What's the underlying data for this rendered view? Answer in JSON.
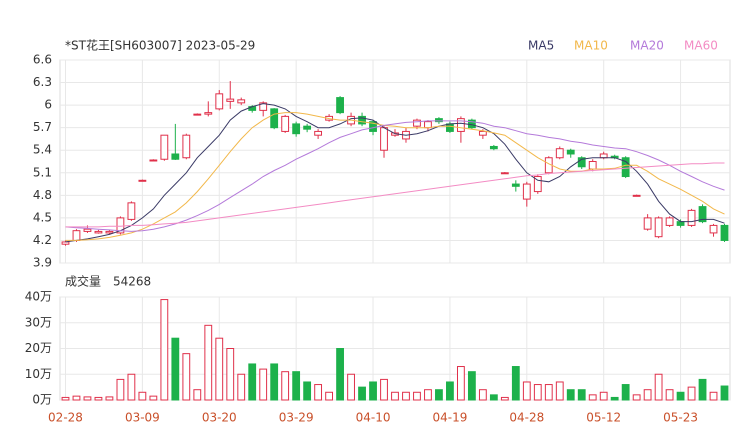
{
  "chart_data": {
    "type": "candlestick",
    "title": "*ST花王[SH603007] 2023-05-29",
    "categories": [
      "02-28",
      null,
      null,
      null,
      null,
      null,
      null,
      "03-09",
      null,
      null,
      null,
      null,
      null,
      null,
      "03-20",
      null,
      null,
      null,
      null,
      null,
      null,
      "03-29",
      null,
      null,
      null,
      null,
      null,
      null,
      "04-10",
      null,
      null,
      null,
      null,
      null,
      null,
      "04-19",
      null,
      null,
      null,
      null,
      null,
      null,
      "04-28",
      null,
      null,
      null,
      null,
      null,
      null,
      "05-12",
      null,
      null,
      null,
      null,
      null,
      null,
      "05-23",
      null,
      null,
      null,
      null
    ],
    "open": [
      4.15,
      4.2,
      4.32,
      4.3,
      4.3,
      4.3,
      4.48,
      5.0,
      5.27,
      5.28,
      5.35,
      5.3,
      5.88,
      5.88,
      5.95,
      6.05,
      6.03,
      5.98,
      5.93,
      5.95,
      5.65,
      5.75,
      5.72,
      5.6,
      5.8,
      6.1,
      5.75,
      5.85,
      5.78,
      5.4,
      5.6,
      5.55,
      5.72,
      5.7,
      5.82,
      5.75,
      5.65,
      5.8,
      5.6,
      5.45,
      5.1,
      4.95,
      4.75,
      4.85,
      5.1,
      5.3,
      5.4,
      5.3,
      5.15,
      5.3,
      5.32,
      5.3,
      4.8,
      4.35,
      4.25,
      4.4,
      4.45,
      4.4,
      4.65,
      4.3,
      4.4
    ],
    "close": [
      4.18,
      4.33,
      4.35,
      4.32,
      4.32,
      4.5,
      4.7,
      5.0,
      5.27,
      5.6,
      5.28,
      5.6,
      5.88,
      5.9,
      6.15,
      6.08,
      6.07,
      5.93,
      6.03,
      5.7,
      5.85,
      5.62,
      5.68,
      5.65,
      5.85,
      5.9,
      5.85,
      5.75,
      5.65,
      5.7,
      5.63,
      5.65,
      5.8,
      5.78,
      5.78,
      5.65,
      5.82,
      5.7,
      5.65,
      5.42,
      5.1,
      4.92,
      4.95,
      5.05,
      5.3,
      5.42,
      5.35,
      5.18,
      5.25,
      5.35,
      5.3,
      5.05,
      4.8,
      4.5,
      4.5,
      4.5,
      4.4,
      4.6,
      4.45,
      4.4,
      4.2
    ],
    "high": [
      4.2,
      4.35,
      4.4,
      4.34,
      4.34,
      4.52,
      4.72,
      5.01,
      5.28,
      5.6,
      5.75,
      5.62,
      5.89,
      6.05,
      6.2,
      6.32,
      6.1,
      6.0,
      6.05,
      5.96,
      5.87,
      5.78,
      5.75,
      5.68,
      5.88,
      6.12,
      5.9,
      5.9,
      5.8,
      5.72,
      5.68,
      5.7,
      5.82,
      5.8,
      5.84,
      5.78,
      5.85,
      5.82,
      5.68,
      5.47,
      5.11,
      5.0,
      4.98,
      5.08,
      5.32,
      5.45,
      5.42,
      5.32,
      5.28,
      5.38,
      5.34,
      5.32,
      4.81,
      4.55,
      4.52,
      4.52,
      4.48,
      4.62,
      4.68,
      4.42,
      4.42
    ],
    "low": [
      4.13,
      4.18,
      4.3,
      4.29,
      4.28,
      4.28,
      4.46,
      4.99,
      5.26,
      5.26,
      5.27,
      5.28,
      5.87,
      5.85,
      5.93,
      5.95,
      6.0,
      5.9,
      5.85,
      5.68,
      5.63,
      5.58,
      5.64,
      5.55,
      5.78,
      5.88,
      5.72,
      5.72,
      5.6,
      5.3,
      5.58,
      5.5,
      5.68,
      5.65,
      5.75,
      5.63,
      5.5,
      5.68,
      5.55,
      5.4,
      5.09,
      4.85,
      4.65,
      4.82,
      5.08,
      5.28,
      5.3,
      5.15,
      5.12,
      5.28,
      5.28,
      5.03,
      4.79,
      4.33,
      4.23,
      4.38,
      4.37,
      4.38,
      4.43,
      4.25,
      4.18
    ],
    "up_color": "#e0304a",
    "down_color": "#1db14b",
    "ylim": [
      3.9,
      6.6
    ],
    "yticks": [
      3.9,
      4.2,
      4.5,
      4.8,
      5.1,
      5.4,
      5.7,
      6,
      6.3,
      6.6
    ],
    "grid": true,
    "series": [
      {
        "name": "MA5",
        "color": "#3a3a66",
        "values": [
          4.18,
          4.2,
          4.22,
          4.25,
          4.28,
          4.33,
          4.4,
          4.5,
          4.62,
          4.8,
          4.95,
          5.1,
          5.3,
          5.45,
          5.6,
          5.8,
          5.92,
          5.98,
          6.02,
          6.0,
          5.95,
          5.85,
          5.78,
          5.7,
          5.7,
          5.75,
          5.82,
          5.83,
          5.8,
          5.7,
          5.62,
          5.6,
          5.62,
          5.66,
          5.72,
          5.75,
          5.76,
          5.74,
          5.7,
          5.62,
          5.48,
          5.28,
          5.1,
          5.0,
          4.98,
          5.05,
          5.18,
          5.28,
          5.3,
          5.3,
          5.3,
          5.25,
          5.12,
          4.95,
          4.72,
          4.55,
          4.45,
          4.45,
          4.48,
          4.48,
          4.43
        ]
      },
      {
        "name": "MA10",
        "color": "#f2b84b",
        "values": [
          4.2,
          4.2,
          4.21,
          4.22,
          4.24,
          4.27,
          4.3,
          4.35,
          4.42,
          4.5,
          4.58,
          4.7,
          4.85,
          5.02,
          5.2,
          5.38,
          5.55,
          5.7,
          5.8,
          5.88,
          5.9,
          5.9,
          5.88,
          5.85,
          5.82,
          5.8,
          5.8,
          5.78,
          5.76,
          5.73,
          5.72,
          5.7,
          5.7,
          5.7,
          5.72,
          5.72,
          5.7,
          5.68,
          5.66,
          5.63,
          5.6,
          5.5,
          5.4,
          5.3,
          5.22,
          5.15,
          5.12,
          5.12,
          5.15,
          5.15,
          5.16,
          5.2,
          5.2,
          5.12,
          5.02,
          4.95,
          4.88,
          4.8,
          4.72,
          4.62,
          4.55
        ]
      },
      {
        "name": "MA20",
        "color": "#b47ada",
        "values": [
          4.38,
          4.37,
          4.36,
          4.35,
          4.34,
          4.33,
          4.32,
          4.33,
          4.35,
          4.38,
          4.42,
          4.47,
          4.53,
          4.6,
          4.68,
          4.77,
          4.86,
          4.95,
          5.05,
          5.13,
          5.2,
          5.28,
          5.35,
          5.42,
          5.5,
          5.57,
          5.62,
          5.67,
          5.7,
          5.73,
          5.75,
          5.77,
          5.78,
          5.79,
          5.79,
          5.79,
          5.79,
          5.78,
          5.76,
          5.72,
          5.7,
          5.66,
          5.62,
          5.6,
          5.57,
          5.55,
          5.52,
          5.5,
          5.47,
          5.45,
          5.43,
          5.42,
          5.38,
          5.33,
          5.27,
          5.2,
          5.12,
          5.05,
          4.98,
          4.92,
          4.87
        ]
      },
      {
        "name": "MA60",
        "color": "#f38cc4",
        "values": [
          4.38,
          4.38,
          4.38,
          4.38,
          4.39,
          4.39,
          4.4,
          4.4,
          4.41,
          4.42,
          4.43,
          4.44,
          4.46,
          4.48,
          4.5,
          4.52,
          4.54,
          4.56,
          4.58,
          4.6,
          4.62,
          4.64,
          4.66,
          4.68,
          4.7,
          4.72,
          4.74,
          4.76,
          4.78,
          4.8,
          4.82,
          4.84,
          4.86,
          4.88,
          4.9,
          4.92,
          4.94,
          4.96,
          4.98,
          5.0,
          5.02,
          5.04,
          5.06,
          5.07,
          5.09,
          5.1,
          5.11,
          5.12,
          5.13,
          5.14,
          5.15,
          5.16,
          5.17,
          5.18,
          5.19,
          5.2,
          5.21,
          5.22,
          5.22,
          5.23,
          5.23
        ]
      }
    ],
    "volume": {
      "title": "成交量",
      "latest": 54268,
      "values": [
        1,
        1.5,
        1.2,
        1,
        1.2,
        8,
        10,
        3,
        1.5,
        39,
        24,
        18,
        4,
        29,
        24,
        20,
        10,
        14,
        12,
        14,
        11,
        11,
        7,
        6,
        3,
        20,
        10,
        5,
        7,
        8,
        3,
        3,
        3,
        4,
        4,
        7,
        13,
        11,
        4,
        2,
        1,
        13,
        7,
        6,
        6,
        7,
        4,
        4,
        2,
        3,
        1,
        6,
        2,
        4,
        10,
        4,
        3,
        5,
        8,
        3,
        5.4268
      ],
      "ylim": [
        0,
        40
      ],
      "yticks": [
        {
          "value": 0,
          "label": "0万"
        },
        {
          "value": 10,
          "label": "10万"
        },
        {
          "value": 20,
          "label": "20万"
        },
        {
          "value": 30,
          "label": "30万"
        },
        {
          "value": 40,
          "label": "40万"
        }
      ]
    }
  }
}
